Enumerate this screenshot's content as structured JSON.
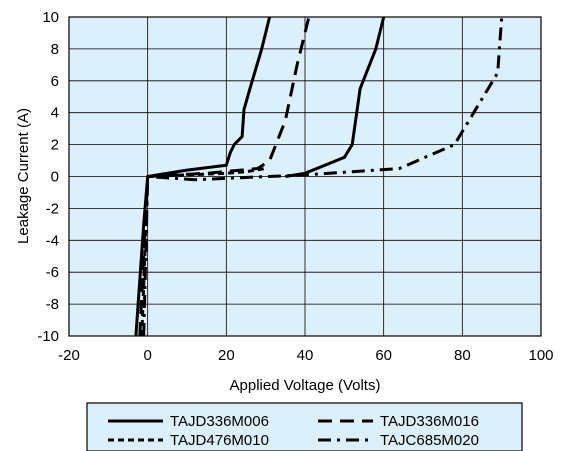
{
  "chart_data": {
    "type": "line",
    "title": "",
    "xlabel": "Applied Voltage (Volts)",
    "ylabel": "Leakage Current (A)",
    "xlim": [
      -20,
      100
    ],
    "ylim": [
      -10,
      10
    ],
    "x_ticks": [
      "-20",
      "0",
      "20",
      "40",
      "60",
      "80",
      "100"
    ],
    "y_ticks": [
      "10",
      "8",
      "6",
      "4",
      "2",
      "0",
      "-2",
      "-4",
      "-6",
      "-8",
      "-10"
    ],
    "grid": true,
    "legend_position": "bottom",
    "colors": {
      "plot_background": "#dcf0fb",
      "frame_fill": "#ffffff",
      "legend_background": "#dcf0fb",
      "line": "#000000"
    },
    "series": [
      {
        "name": "TAJD336M006",
        "style": "solid",
        "x": [
          -3,
          -1,
          0,
          10,
          20,
          21,
          22,
          24,
          24.5,
          26,
          29,
          31
        ],
        "y": [
          -10,
          -3,
          0,
          0.4,
          0.7,
          1.5,
          2,
          2.5,
          4.2,
          5.5,
          8,
          10
        ]
      },
      {
        "name": "TAJD336M016",
        "style": "dash",
        "x": [
          -2,
          -1,
          0,
          15,
          28,
          31,
          35,
          38,
          41
        ],
        "y": [
          -10,
          -5,
          0,
          0.2,
          0.5,
          1,
          3.5,
          7,
          10
        ]
      },
      {
        "name": "TAJD476M010",
        "style": "short-dash",
        "x": [
          -1.5,
          0,
          10,
          20,
          25,
          30
        ],
        "y": [
          -10,
          0,
          0.1,
          0.2,
          0.3,
          0.5
        ]
      },
      {
        "name": "TAJC685M020",
        "style": "dash-dot",
        "x": [
          -1,
          0,
          12,
          40,
          64,
          78,
          89,
          90
        ],
        "y": [
          -10,
          0,
          -0.2,
          0.1,
          0.5,
          2,
          6.5,
          10
        ]
      }
    ],
    "extra_curves": [
      {
        "of": "TAJD336M006",
        "style": "solid",
        "x": [
          35,
          40,
          50,
          52,
          54,
          58,
          60
        ],
        "y": [
          0,
          0.2,
          1.2,
          2,
          5.5,
          8,
          10
        ]
      }
    ]
  }
}
